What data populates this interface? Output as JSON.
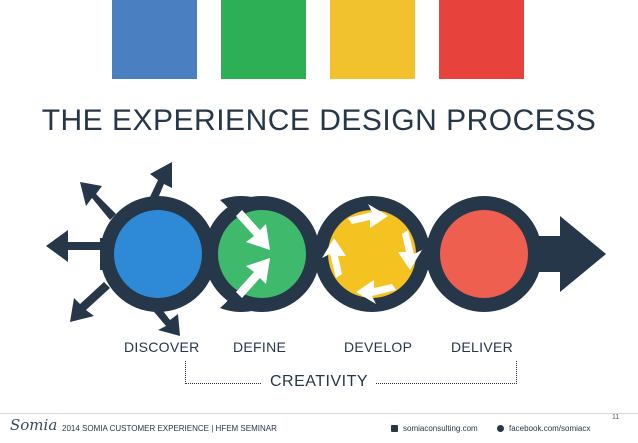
{
  "colors": {
    "blue": "#4a7fc1",
    "green": "#2db055",
    "yellow": "#f2c12e",
    "red": "#e8423d",
    "navy": "#26374a",
    "discover_fill": "#2e8ad6",
    "define_fill": "#3fb96b",
    "develop_fill": "#f4c322",
    "deliver_fill": "#ee5f4f"
  },
  "title": "THE EXPERIENCE DESIGN PROCESS",
  "stages": [
    {
      "label": "DISCOVER"
    },
    {
      "label": "DEFINE"
    },
    {
      "label": "DEVELOP"
    },
    {
      "label": "DELIVER"
    }
  ],
  "bracket_label": "CREATIVITY",
  "footer": {
    "logo": "Somia",
    "seminar": "2014 SOMIA CUSTOMER EXPERIENCE | HFEM SEMINAR",
    "site": "somiaconsulting.com",
    "facebook": "facebook.com/somiacx",
    "page_number": "11"
  }
}
